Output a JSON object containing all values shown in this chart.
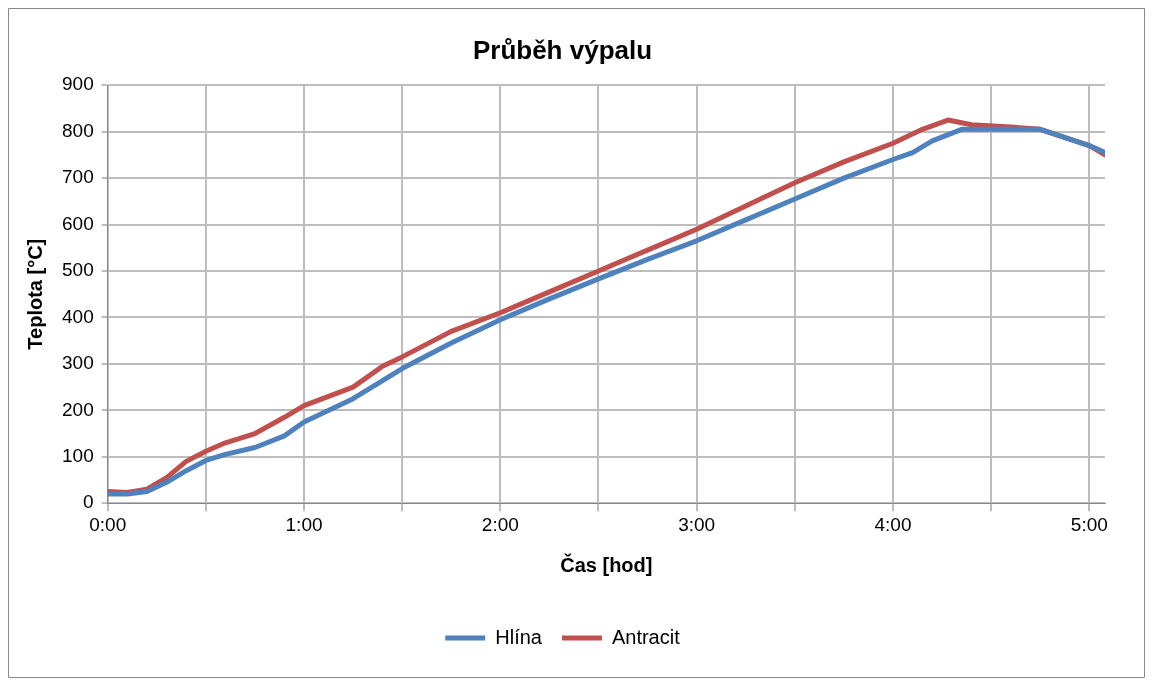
{
  "chart_data": {
    "type": "line",
    "title": "Průběh výpalu",
    "xlabel": "Čas [hod]",
    "ylabel": "Teplota [°C]",
    "xlim": [
      0,
      5.08
    ],
    "xticks": [
      {
        "value": 0,
        "label": "0:00"
      },
      {
        "value": 0.5,
        "label": null
      },
      {
        "value": 1,
        "label": "1:00"
      },
      {
        "value": 1.5,
        "label": null
      },
      {
        "value": 2,
        "label": "2:00"
      },
      {
        "value": 2.5,
        "label": null
      },
      {
        "value": 3,
        "label": "3:00"
      },
      {
        "value": 3.5,
        "label": null
      },
      {
        "value": 4,
        "label": "4:00"
      },
      {
        "value": 4.5,
        "label": null
      },
      {
        "value": 5,
        "label": "5:00"
      }
    ],
    "ylim": [
      0,
      900
    ],
    "yticks": [
      0,
      100,
      200,
      300,
      400,
      500,
      600,
      700,
      800,
      900
    ],
    "grid": true,
    "legend": "bottom",
    "marker": "none",
    "line_style": "solid",
    "series": [
      {
        "name": "Hlína",
        "color": "#4f81bd",
        "x": [
          0,
          0.1,
          0.2,
          0.3,
          0.4,
          0.5,
          0.6,
          0.75,
          0.9,
          1.0,
          1.25,
          1.5,
          1.75,
          2.0,
          2.25,
          2.5,
          2.75,
          3.0,
          3.25,
          3.5,
          3.75,
          4.0,
          4.1,
          4.2,
          4.35,
          4.5,
          4.75,
          5.0,
          5.08
        ],
        "values": [
          20,
          20,
          25,
          45,
          70,
          92,
          105,
          120,
          145,
          175,
          225,
          290,
          345,
          395,
          440,
          483,
          525,
          565,
          610,
          655,
          700,
          740,
          755,
          780,
          805,
          805,
          805,
          770,
          755
        ]
      },
      {
        "name": "Antracit",
        "color": "#c0504d",
        "x": [
          0,
          0.1,
          0.2,
          0.3,
          0.4,
          0.5,
          0.6,
          0.75,
          0.9,
          1.0,
          1.25,
          1.4,
          1.5,
          1.75,
          2.0,
          2.25,
          2.5,
          2.75,
          3.0,
          3.25,
          3.5,
          3.75,
          4.0,
          4.15,
          4.28,
          4.4,
          4.6,
          4.75,
          5.0,
          5.08
        ],
        "values": [
          25,
          23,
          30,
          55,
          90,
          112,
          130,
          150,
          185,
          210,
          250,
          295,
          315,
          370,
          410,
          455,
          500,
          545,
          590,
          640,
          690,
          735,
          775,
          805,
          825,
          815,
          810,
          805,
          770,
          750
        ]
      }
    ]
  }
}
